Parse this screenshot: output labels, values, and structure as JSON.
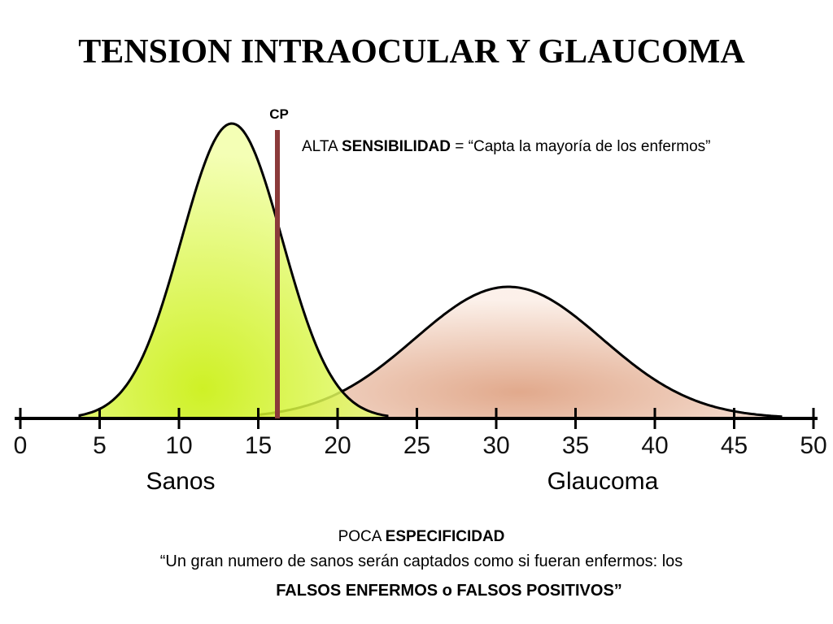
{
  "header": {
    "title": "TENSION INTRAOCULAR Y GLAUCOMA"
  },
  "cutoff": {
    "label": "CP"
  },
  "sensitivity_note": {
    "parts": [
      "ALTA ",
      "SENSIBILIDAD",
      " = “Capta la mayoría de los enfermos”"
    ]
  },
  "axis": {
    "ticks": [
      0,
      5,
      10,
      15,
      20,
      25,
      30,
      35,
      40,
      45,
      50
    ]
  },
  "curves": {
    "healthy": "Sanos",
    "glaucoma": "Glaucoma"
  },
  "specificity_note": {
    "heading": [
      "POCA ",
      "ESPECIFICIDAD"
    ],
    "line1": "“Un gran numero de sanos serán captados como si fueran enfermos: los",
    "line2": "FALSOS ENFERMOS o FALSOS POSITIVOS”"
  }
}
